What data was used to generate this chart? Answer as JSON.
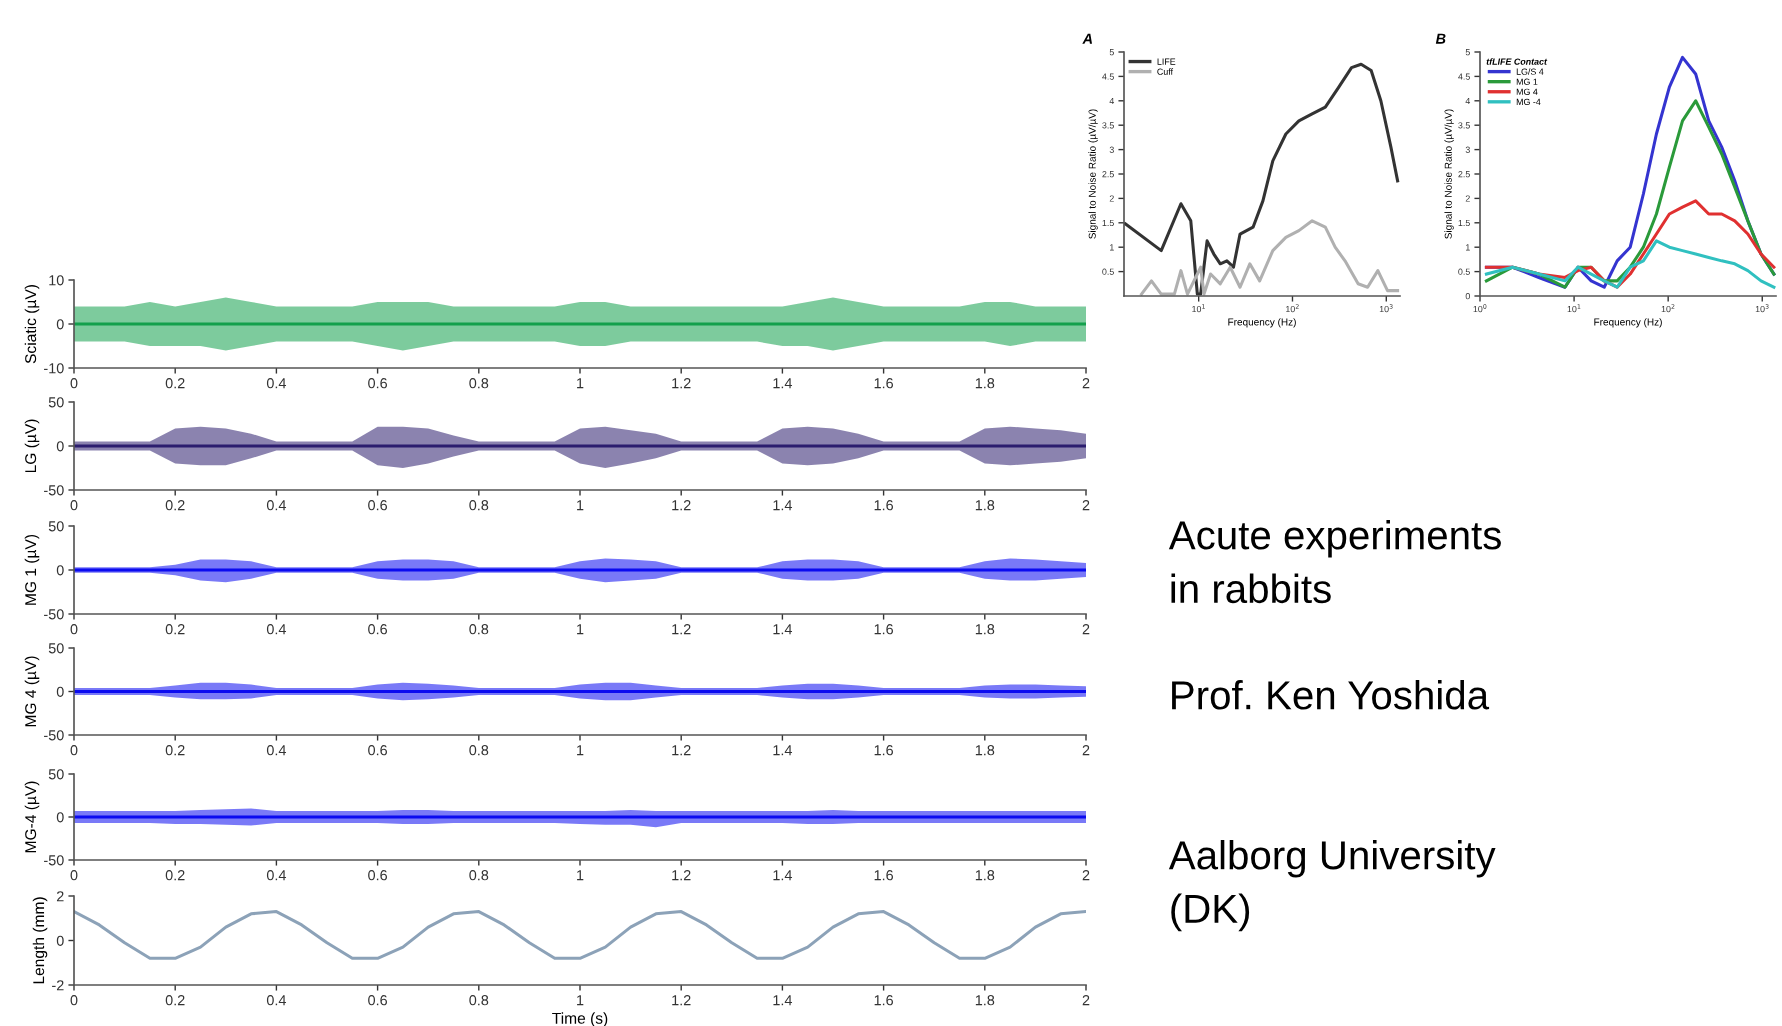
{
  "chart_data": [
    {
      "type": "line",
      "title": "A",
      "xlabel": "Frequency (Hz)",
      "ylabel": "Signal to Noise Ratio (µV/µV)",
      "log": "x",
      "legend": "top left",
      "xlim": [
        1.6,
        1400
      ],
      "ylim": [
        0,
        5
      ],
      "xticks": [
        {
          "value": 10,
          "label": "10$^{1}$"
        },
        {
          "value": 100,
          "label": "10$^{2}$"
        },
        {
          "value": 1000,
          "label": "10$^{3}$"
        }
      ],
      "yticks": [
        0.5,
        1,
        1.5,
        2,
        2.5,
        3,
        3.5,
        4,
        4.5,
        5
      ],
      "series": [
        {
          "name": "LIFE",
          "color": "#333333",
          "x": [
            1.65,
            3.99,
            6.47,
            8.24,
            9.68,
            10.5,
            12.3,
            14.5,
            17.0,
            20.0,
            23.5,
            27.6,
            38,
            48.4,
            61.7,
            85,
            117,
            162,
            224,
            309,
            426,
            539,
            690,
            875,
            1120,
            1320
          ],
          "values": [
            1.48,
            0.93,
            1.89,
            1.54,
            0.04,
            0.04,
            1.13,
            0.86,
            0.66,
            0.72,
            0.59,
            1.27,
            1.41,
            1.95,
            2.77,
            3.32,
            3.59,
            3.73,
            3.87,
            4.27,
            4.68,
            4.75,
            4.62,
            4.0,
            3.05,
            2.36
          ]
        },
        {
          "name": "Cuff",
          "color": "#b0b0b0",
          "x": [
            2.46,
            3.14,
            3.99,
            5.51,
            6.47,
            7.6,
            10.5,
            11.4,
            13.4,
            17.0,
            21.7,
            27.6,
            35.1,
            44.7,
            61.7,
            85,
            117,
            162,
            224,
            285,
            363,
            501,
            632,
            813,
            1030,
            1320
          ],
          "values": [
            0.04,
            0.31,
            0.04,
            0.04,
            0.52,
            0.04,
            0.59,
            0.04,
            0.45,
            0.25,
            0.59,
            0.18,
            0.66,
            0.31,
            0.93,
            1.2,
            1.34,
            1.54,
            1.41,
            1.0,
            0.72,
            0.25,
            0.18,
            0.52,
            0.11,
            0.11
          ]
        }
      ]
    },
    {
      "type": "line",
      "title": "B",
      "xlabel": "Frequency (Hz)",
      "ylabel": "Signal to Noise Ratio (µV/µV)",
      "legend_title": "tfLIFE Contact",
      "log": "x",
      "legend": "top left",
      "xlim": [
        1,
        1400
      ],
      "ylim": [
        0,
        5
      ],
      "xticks": [
        {
          "value": 1,
          "label": "10$^{0}$"
        },
        {
          "value": 10,
          "label": "10$^{1}$"
        },
        {
          "value": 100,
          "label": "10$^{2}$"
        },
        {
          "value": 1000,
          "label": "10$^{3}$"
        }
      ],
      "yticks": [
        0,
        0.5,
        1,
        1.5,
        2,
        2.5,
        3,
        3.5,
        4,
        4.5,
        5
      ],
      "x": [
        1.17,
        2.22,
        4.22,
        8.0,
        11.0,
        15.2,
        20.9,
        28.7,
        39.5,
        54.5,
        75,
        103,
        142,
        196,
        270,
        371,
        510,
        703,
        970,
        1330
      ],
      "series": [
        {
          "name": "LG/S 4",
          "color": "#3434d0",
          "values": [
            0.59,
            0.59,
            0.38,
            0.18,
            0.59,
            0.31,
            0.18,
            0.72,
            1.0,
            2.09,
            3.32,
            4.28,
            4.89,
            4.55,
            3.59,
            3.05,
            2.36,
            1.54,
            0.86,
            0.45
          ]
        },
        {
          "name": "MG 1",
          "color": "#2a9a3a",
          "values": [
            0.31,
            0.59,
            0.45,
            0.18,
            0.59,
            0.59,
            0.31,
            0.31,
            0.59,
            1.0,
            1.68,
            2.64,
            3.59,
            4.0,
            3.46,
            2.91,
            2.23,
            1.54,
            0.86,
            0.45
          ]
        },
        {
          "name": "MG 4",
          "color": "#e03030",
          "values": [
            0.59,
            0.59,
            0.45,
            0.38,
            0.52,
            0.59,
            0.31,
            0.18,
            0.45,
            0.86,
            1.27,
            1.68,
            1.82,
            1.95,
            1.68,
            1.68,
            1.54,
            1.27,
            0.86,
            0.59
          ]
        },
        {
          "name": "MG -4",
          "color": "#30c0c0",
          "values": [
            0.45,
            0.59,
            0.45,
            0.31,
            0.59,
            0.45,
            0.31,
            0.18,
            0.59,
            0.72,
            1.13,
            1.0,
            0.93,
            0.86,
            0.79,
            0.72,
            0.66,
            0.52,
            0.31,
            0.18
          ]
        }
      ]
    },
    {
      "type": "line",
      "ylabel": "Sciatic (µV)",
      "xlim": [
        0,
        2
      ],
      "ylim": [
        -10,
        10
      ],
      "xticks": [
        0,
        0.2,
        0.4,
        0.6,
        0.8,
        1,
        1.2,
        1.4,
        1.6,
        1.8,
        2
      ],
      "yticks": [
        -10,
        0,
        10
      ],
      "x": [
        0,
        0.05,
        0.1,
        0.15,
        0.2,
        0.25,
        0.3,
        0.35,
        0.4,
        0.45,
        0.5,
        0.55,
        0.6,
        0.65,
        0.7,
        0.75,
        0.8,
        0.85,
        0.9,
        0.95,
        1,
        1.05,
        1.1,
        1.15,
        1.2,
        1.25,
        1.3,
        1.35,
        1.4,
        1.45,
        1.5,
        1.55,
        1.6,
        1.65,
        1.7,
        1.75,
        1.8,
        1.85,
        1.9,
        1.95,
        2
      ],
      "series": [
        {
          "color": "#13a04c",
          "values": [
            0,
            0,
            0,
            0,
            0,
            0,
            0,
            0,
            0,
            0,
            0,
            0,
            0,
            0,
            0,
            0,
            0,
            0,
            0,
            0,
            0,
            0,
            0,
            0,
            0,
            0,
            0,
            0,
            0,
            0,
            0,
            0,
            0,
            0,
            0,
            0,
            0,
            0,
            0,
            0,
            0
          ],
          "upper": [
            4,
            4,
            4,
            5,
            4,
            5,
            6,
            5,
            4,
            4,
            4,
            4,
            5,
            5,
            5,
            4,
            4,
            4,
            4,
            4,
            5,
            5,
            4,
            4,
            4,
            4,
            4,
            4,
            4,
            5,
            6,
            5,
            4,
            4,
            4,
            4,
            5,
            5,
            4,
            4,
            4
          ],
          "lower": [
            -4,
            -4,
            -4,
            -5,
            -5,
            -5,
            -6,
            -5,
            -4,
            -4,
            -4,
            -4,
            -5,
            -6,
            -5,
            -4,
            -4,
            -4,
            -4,
            -4,
            -5,
            -5,
            -4,
            -4,
            -4,
            -4,
            -4,
            -4,
            -5,
            -5,
            -6,
            -5,
            -4,
            -4,
            -4,
            -4,
            -4,
            -5,
            -4,
            -4,
            -4
          ]
        }
      ]
    },
    {
      "type": "line",
      "ylabel": "LG (µV)",
      "xlim": [
        0,
        2
      ],
      "ylim": [
        -50,
        50
      ],
      "xticks": [
        0,
        0.2,
        0.4,
        0.6,
        0.8,
        1,
        1.2,
        1.4,
        1.6,
        1.8,
        2
      ],
      "yticks": [
        -50,
        0,
        50
      ],
      "x": [
        0,
        0.05,
        0.1,
        0.15,
        0.2,
        0.25,
        0.3,
        0.35,
        0.4,
        0.45,
        0.5,
        0.55,
        0.6,
        0.65,
        0.7,
        0.75,
        0.8,
        0.85,
        0.9,
        0.95,
        1,
        1.05,
        1.1,
        1.15,
        1.2,
        1.25,
        1.3,
        1.35,
        1.4,
        1.45,
        1.5,
        1.55,
        1.6,
        1.65,
        1.7,
        1.75,
        1.8,
        1.85,
        1.9,
        1.95,
        2
      ],
      "series": [
        {
          "color": "#2b1d6e",
          "values": [
            0,
            0,
            0,
            0,
            0,
            0,
            0,
            0,
            0,
            0,
            0,
            0,
            0,
            0,
            0,
            0,
            0,
            0,
            0,
            0,
            0,
            0,
            0,
            0,
            0,
            0,
            0,
            0,
            0,
            0,
            0,
            0,
            0,
            0,
            0,
            0,
            0,
            0,
            0,
            0,
            0
          ],
          "upper": [
            5,
            5,
            5,
            5,
            20,
            22,
            20,
            14,
            5,
            5,
            5,
            5,
            22,
            22,
            20,
            12,
            5,
            5,
            5,
            5,
            20,
            22,
            18,
            14,
            5,
            5,
            5,
            5,
            20,
            22,
            20,
            14,
            5,
            5,
            5,
            5,
            20,
            22,
            20,
            18,
            14
          ],
          "lower": [
            -5,
            -5,
            -5,
            -5,
            -20,
            -22,
            -22,
            -14,
            -5,
            -5,
            -5,
            -5,
            -22,
            -25,
            -20,
            -12,
            -5,
            -5,
            -5,
            -5,
            -20,
            -25,
            -20,
            -14,
            -5,
            -5,
            -5,
            -5,
            -20,
            -22,
            -20,
            -14,
            -5,
            -5,
            -5,
            -5,
            -20,
            -22,
            -20,
            -18,
            -14
          ]
        }
      ]
    },
    {
      "type": "line",
      "ylabel": "MG 1 (µV)",
      "xlim": [
        0,
        2
      ],
      "ylim": [
        -50,
        50
      ],
      "xticks": [
        0,
        0.2,
        0.4,
        0.6,
        0.8,
        1,
        1.2,
        1.4,
        1.6,
        1.8,
        2
      ],
      "yticks": [
        -50,
        0,
        50
      ],
      "x": [
        0,
        0.05,
        0.1,
        0.15,
        0.2,
        0.25,
        0.3,
        0.35,
        0.4,
        0.45,
        0.5,
        0.55,
        0.6,
        0.65,
        0.7,
        0.75,
        0.8,
        0.85,
        0.9,
        0.95,
        1,
        1.05,
        1.1,
        1.15,
        1.2,
        1.25,
        1.3,
        1.35,
        1.4,
        1.45,
        1.5,
        1.55,
        1.6,
        1.65,
        1.7,
        1.75,
        1.8,
        1.85,
        1.9,
        1.95,
        2
      ],
      "series": [
        {
          "color": "#0b0bf0",
          "values": [
            0,
            0,
            0,
            0,
            0,
            0,
            0,
            0,
            0,
            0,
            0,
            0,
            0,
            0,
            0,
            0,
            0,
            0,
            0,
            0,
            0,
            0,
            0,
            0,
            0,
            0,
            0,
            0,
            0,
            0,
            0,
            0,
            0,
            0,
            0,
            0,
            0,
            0,
            0,
            0,
            0
          ],
          "upper": [
            3,
            3,
            3,
            3,
            6,
            12,
            12,
            10,
            3,
            3,
            3,
            3,
            10,
            12,
            12,
            10,
            3,
            3,
            3,
            3,
            10,
            13,
            12,
            10,
            3,
            3,
            3,
            3,
            10,
            12,
            12,
            10,
            3,
            3,
            3,
            3,
            10,
            13,
            12,
            10,
            8
          ],
          "lower": [
            -3,
            -3,
            -3,
            -3,
            -6,
            -12,
            -14,
            -10,
            -3,
            -3,
            -3,
            -3,
            -10,
            -12,
            -12,
            -10,
            -3,
            -3,
            -3,
            -3,
            -10,
            -14,
            -12,
            -10,
            -3,
            -3,
            -3,
            -3,
            -10,
            -12,
            -12,
            -10,
            -3,
            -3,
            -3,
            -3,
            -10,
            -12,
            -12,
            -10,
            -8
          ]
        }
      ]
    },
    {
      "type": "line",
      "ylabel": "MG 4 (µV)",
      "xlim": [
        0,
        2
      ],
      "ylim": [
        -50,
        50
      ],
      "xticks": [
        0,
        0.2,
        0.4,
        0.6,
        0.8,
        1,
        1.2,
        1.4,
        1.6,
        1.8,
        2
      ],
      "yticks": [
        -50,
        0,
        50
      ],
      "x": [
        0,
        0.05,
        0.1,
        0.15,
        0.2,
        0.25,
        0.3,
        0.35,
        0.4,
        0.45,
        0.5,
        0.55,
        0.6,
        0.65,
        0.7,
        0.75,
        0.8,
        0.85,
        0.9,
        0.95,
        1,
        1.05,
        1.1,
        1.15,
        1.2,
        1.25,
        1.3,
        1.35,
        1.4,
        1.45,
        1.5,
        1.55,
        1.6,
        1.65,
        1.7,
        1.75,
        1.8,
        1.85,
        1.9,
        1.95,
        2
      ],
      "series": [
        {
          "color": "#0b0bf0",
          "values": [
            0,
            0,
            0,
            0,
            0,
            0,
            0,
            0,
            0,
            0,
            0,
            0,
            0,
            0,
            0,
            0,
            0,
            0,
            0,
            0,
            0,
            0,
            0,
            0,
            0,
            0,
            0,
            0,
            0,
            0,
            0,
            0,
            0,
            0,
            0,
            0,
            0,
            0,
            0,
            0,
            0
          ],
          "upper": [
            4,
            4,
            4,
            4,
            7,
            10,
            10,
            8,
            4,
            4,
            4,
            4,
            8,
            10,
            9,
            7,
            4,
            4,
            4,
            4,
            8,
            10,
            10,
            7,
            4,
            4,
            4,
            4,
            7,
            9,
            9,
            7,
            4,
            4,
            4,
            4,
            7,
            8,
            8,
            7,
            6
          ],
          "lower": [
            -4,
            -4,
            -4,
            -4,
            -7,
            -9,
            -9,
            -8,
            -4,
            -4,
            -4,
            -4,
            -8,
            -10,
            -9,
            -7,
            -4,
            -4,
            -4,
            -4,
            -8,
            -10,
            -10,
            -7,
            -4,
            -4,
            -4,
            -4,
            -7,
            -9,
            -9,
            -7,
            -4,
            -4,
            -4,
            -4,
            -7,
            -8,
            -8,
            -7,
            -6
          ]
        }
      ]
    },
    {
      "type": "line",
      "ylabel": "MG-4 (µV)",
      "xlim": [
        0,
        2
      ],
      "ylim": [
        -50,
        50
      ],
      "xticks": [
        0,
        0.2,
        0.4,
        0.6,
        0.8,
        1,
        1.2,
        1.4,
        1.6,
        1.8,
        2
      ],
      "yticks": [
        -50,
        0,
        50
      ],
      "x": [
        0,
        0.05,
        0.1,
        0.15,
        0.2,
        0.25,
        0.3,
        0.35,
        0.4,
        0.45,
        0.5,
        0.55,
        0.6,
        0.65,
        0.7,
        0.75,
        0.8,
        0.85,
        0.9,
        0.95,
        1,
        1.05,
        1.1,
        1.15,
        1.2,
        1.25,
        1.3,
        1.35,
        1.4,
        1.45,
        1.5,
        1.55,
        1.6,
        1.65,
        1.7,
        1.75,
        1.8,
        1.85,
        1.9,
        1.95,
        2
      ],
      "series": [
        {
          "color": "#0b0bf0",
          "values": [
            0,
            0,
            0,
            0,
            0,
            0,
            0,
            0,
            0,
            0,
            0,
            0,
            0,
            0,
            0,
            0,
            0,
            0,
            0,
            0,
            0,
            0,
            0,
            0,
            0,
            0,
            0,
            0,
            0,
            0,
            0,
            0,
            0,
            0,
            0,
            0,
            0,
            0,
            0,
            0,
            0
          ],
          "upper": [
            7,
            7,
            7,
            7,
            7,
            8,
            9,
            10,
            7,
            7,
            7,
            7,
            7,
            8,
            8,
            7,
            7,
            7,
            7,
            7,
            7,
            7,
            8,
            7,
            7,
            7,
            7,
            7,
            7,
            7,
            8,
            7,
            7,
            7,
            7,
            7,
            7,
            7,
            7,
            7,
            7
          ],
          "lower": [
            -7,
            -7,
            -7,
            -7,
            -8,
            -8,
            -9,
            -10,
            -7,
            -7,
            -7,
            -7,
            -7,
            -8,
            -8,
            -7,
            -7,
            -7,
            -7,
            -7,
            -8,
            -9,
            -9,
            -12,
            -7,
            -7,
            -7,
            -7,
            -7,
            -8,
            -8,
            -7,
            -7,
            -7,
            -7,
            -7,
            -7,
            -7,
            -7,
            -7,
            -7
          ]
        }
      ]
    },
    {
      "type": "line",
      "ylabel": "Length (mm)",
      "xlabel": "Time (s)",
      "xlim": [
        0,
        2
      ],
      "ylim": [
        -2,
        2
      ],
      "xticks": [
        0,
        0.2,
        0.4,
        0.6,
        0.8,
        1,
        1.2,
        1.4,
        1.6,
        1.8,
        2
      ],
      "yticks": [
        -2,
        0,
        2
      ],
      "x": [
        0,
        0.05,
        0.1,
        0.15,
        0.2,
        0.25,
        0.3,
        0.35,
        0.4,
        0.45,
        0.5,
        0.55,
        0.6,
        0.65,
        0.7,
        0.75,
        0.8,
        0.85,
        0.9,
        0.95,
        1,
        1.05,
        1.1,
        1.15,
        1.2,
        1.25,
        1.3,
        1.35,
        1.4,
        1.45,
        1.5,
        1.55,
        1.6,
        1.65,
        1.7,
        1.75,
        1.8,
        1.85,
        1.9,
        1.95,
        2
      ],
      "series": [
        {
          "color": "#8ca2b8",
          "values": [
            1.3,
            0.7,
            -0.1,
            -0.8,
            -0.8,
            -0.3,
            0.6,
            1.2,
            1.3,
            0.7,
            -0.1,
            -0.8,
            -0.8,
            -0.3,
            0.6,
            1.2,
            1.3,
            0.7,
            -0.1,
            -0.8,
            -0.8,
            -0.3,
            0.6,
            1.2,
            1.3,
            0.7,
            -0.1,
            -0.8,
            -0.8,
            -0.3,
            0.6,
            1.2,
            1.3,
            0.7,
            -0.1,
            -0.8,
            -0.8,
            -0.3,
            0.6,
            1.2,
            1.3
          ]
        }
      ]
    },
    {
      "type": "other",
      "annotations": [
        "Acute experiments\nin rabbits",
        "Prof. Ken Yoshida",
        "Aalborg University\n(DK)"
      ]
    }
  ]
}
